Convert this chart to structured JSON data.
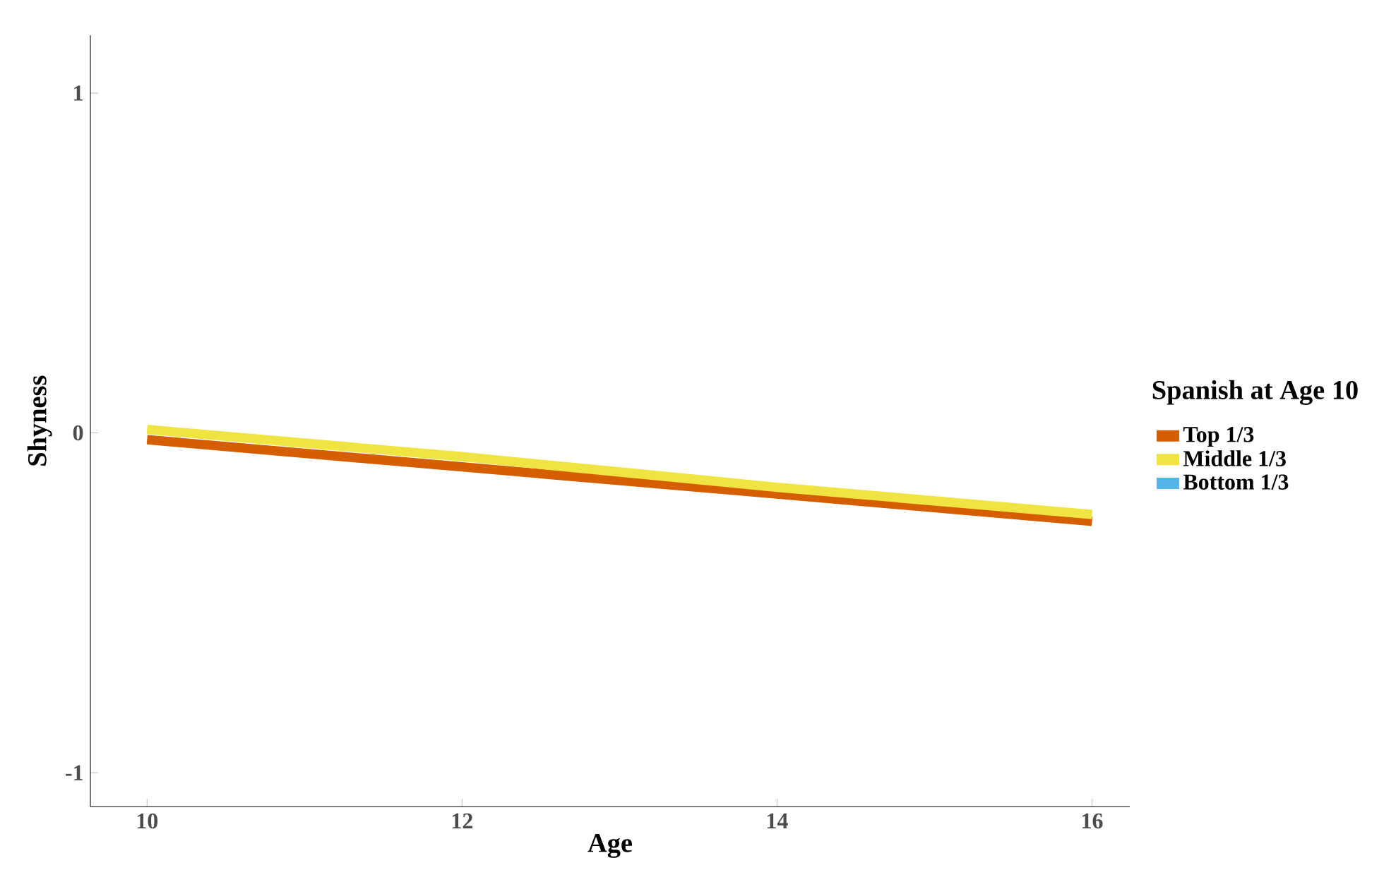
{
  "chart_data": {
    "type": "line",
    "xlabel": "Age",
    "ylabel": "Shyness",
    "legend_title": "Spanish at Age 10",
    "x": [
      10,
      12,
      14,
      16
    ],
    "series": [
      {
        "name": "Top 1/3",
        "color": "#d55e00",
        "values": [
          -0.02,
          -0.1,
          -0.18,
          -0.26
        ]
      },
      {
        "name": "Middle 1/3",
        "color": "#f0e442",
        "values": [
          0.01,
          -0.07,
          -0.16,
          -0.24
        ]
      },
      {
        "name": "Bottom 1/3",
        "color": "#56b4e9",
        "values": [
          null,
          null,
          null,
          null
        ]
      }
    ],
    "xlim": [
      9.64,
      16.24
    ],
    "ylim": [
      -1.1,
      1.17
    ],
    "xticks": [
      10,
      12,
      14,
      16
    ],
    "yticks": [
      -1,
      0,
      1
    ],
    "grid": false,
    "legend": "right",
    "marker": "none",
    "line_style": "solid"
  }
}
